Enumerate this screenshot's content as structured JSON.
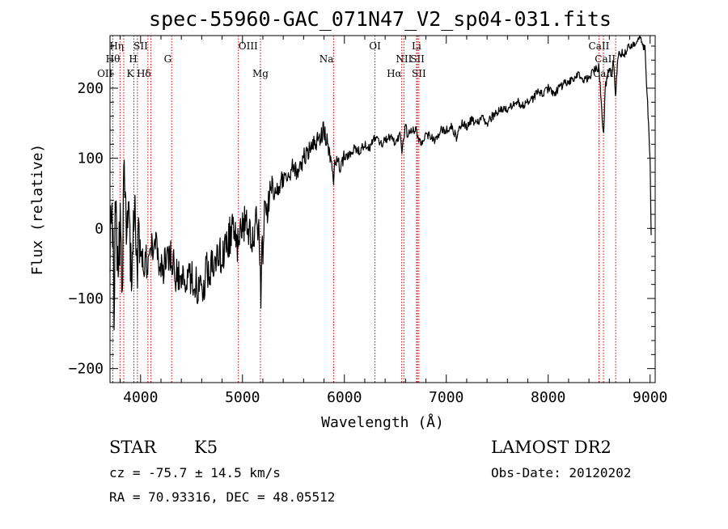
{
  "chart_data": {
    "type": "line",
    "title": "spec-55960-GAC_071N47_V2_sp04-031.fits",
    "xlabel": "Wavelength (Å)",
    "ylabel": "Flux (relative)",
    "xlim": [
      3700,
      9050
    ],
    "ylim": [
      -220,
      275
    ],
    "x_ticks": [
      4000,
      5000,
      6000,
      7000,
      8000,
      9000
    ],
    "y_ticks": [
      -200,
      -100,
      0,
      100,
      200
    ],
    "grid": false,
    "legend": "none",
    "line_color": "#000000",
    "marker_color": "#cc0000",
    "series": [
      {
        "x": [
          3700,
          3720,
          3740,
          3760,
          3780,
          3800,
          3820,
          3840,
          3860,
          3880,
          3900,
          3920,
          3940,
          3960,
          3980,
          4000,
          4050,
          4100,
          4150,
          4200,
          4250,
          4300,
          4350,
          4400,
          4450,
          4500,
          4550,
          4600,
          4650,
          4700,
          4750,
          4800,
          4850,
          4900,
          4950,
          5000,
          5050,
          5100,
          5150,
          5170,
          5180,
          5190,
          5200,
          5210,
          5230,
          5260,
          5300,
          5350,
          5400,
          5450,
          5500,
          5550,
          5600,
          5650,
          5700,
          5750,
          5800,
          5850,
          5880,
          5895,
          5910,
          5930,
          5960,
          6000,
          6050,
          6100,
          6150,
          6200,
          6250,
          6300,
          6350,
          6400,
          6450,
          6500,
          6550,
          6563,
          6580,
          6600,
          6620,
          6650,
          6700,
          6750,
          6800,
          6850,
          6900,
          6950,
          7000,
          7050,
          7100,
          7150,
          7200,
          7250,
          7300,
          7350,
          7400,
          7450,
          7500,
          7550,
          7600,
          7650,
          7700,
          7750,
          7800,
          7850,
          7900,
          7950,
          8000,
          8050,
          8100,
          8150,
          8200,
          8250,
          8300,
          8350,
          8400,
          8450,
          8498,
          8520,
          8542,
          8560,
          8580,
          8600,
          8620,
          8640,
          8662,
          8680,
          8700,
          8750,
          8800,
          8850,
          8900,
          8950,
          9000,
          9010
        ],
        "y": [
          -20,
          40,
          -90,
          60,
          -80,
          30,
          -100,
          140,
          -60,
          0,
          -50,
          -20,
          10,
          -60,
          -20,
          -40,
          -50,
          -30,
          -10,
          -60,
          -50,
          -40,
          -70,
          -60,
          -70,
          -70,
          -80,
          -90,
          -60,
          -50,
          -30,
          -40,
          -20,
          0,
          -20,
          10,
          0,
          -10,
          10,
          -30,
          -110,
          0,
          -40,
          10,
          20,
          40,
          50,
          60,
          70,
          75,
          90,
          80,
          100,
          110,
          120,
          130,
          140,
          110,
          90,
          70,
          100,
          85,
          90,
          100,
          105,
          115,
          110,
          120,
          115,
          130,
          120,
          125,
          130,
          120,
          135,
          110,
          125,
          150,
          130,
          140,
          140,
          120,
          135,
          130,
          125,
          140,
          140,
          145,
          130,
          150,
          145,
          155,
          150,
          160,
          150,
          160,
          165,
          170,
          170,
          175,
          180,
          175,
          180,
          185,
          195,
          190,
          200,
          190,
          200,
          205,
          210,
          210,
          220,
          210,
          215,
          225,
          230,
          180,
          130,
          200,
          215,
          230,
          215,
          240,
          190,
          240,
          250,
          250,
          260,
          265,
          270,
          255,
          100,
          -5
        ]
      }
    ],
    "spectral_lines": [
      {
        "label": "OII",
        "x": 3727,
        "row": 3,
        "anchor": "end"
      },
      {
        "label": "Hθ",
        "x": 3798,
        "row": 2,
        "anchor": "end"
      },
      {
        "label": "Hη",
        "x": 3835,
        "row": 1,
        "anchor": "end"
      },
      {
        "label": "K",
        "x": 3934,
        "row": 3,
        "anchor": "end"
      },
      {
        "label": "H",
        "x": 3969,
        "row": 2,
        "anchor": "end"
      },
      {
        "label": "SII",
        "x": 4072,
        "row": 1,
        "anchor": "end"
      },
      {
        "label": "Hδ",
        "x": 4102,
        "row": 3,
        "anchor": "end"
      },
      {
        "label": "G",
        "x": 4305,
        "row": 2,
        "anchor": "end"
      },
      {
        "label": "OIII",
        "x": 4960,
        "row": 1,
        "anchor": "start"
      },
      {
        "label": "Mg",
        "x": 5176,
        "row": 3,
        "anchor": "middle"
      },
      {
        "label": "Na",
        "x": 5894,
        "row": 2,
        "anchor": "end"
      },
      {
        "label": "OI",
        "x": 6300,
        "row": 1,
        "anchor": "middle"
      },
      {
        "label": "NII",
        "x": 6584,
        "row": 2,
        "anchor": "middle"
      },
      {
        "label": "Hα",
        "x": 6563,
        "row": 3,
        "anchor": "end"
      },
      {
        "label": "Li",
        "x": 6708,
        "row": 1,
        "anchor": "middle"
      },
      {
        "label": "SII",
        "x": 6717,
        "row": 2,
        "anchor": "middle"
      },
      {
        "label": "SII",
        "x": 6731,
        "row": 3,
        "anchor": "middle"
      },
      {
        "label": "CaII",
        "x": 8498,
        "row": 1,
        "anchor": "middle"
      },
      {
        "label": "CaII",
        "x": 8542,
        "row": 3,
        "anchor": "middle"
      },
      {
        "label": "CaII",
        "x": 8662,
        "row": 2,
        "anchor": "end"
      }
    ]
  },
  "footer": {
    "object_class": "STAR",
    "subclass": "K5",
    "survey": "LAMOST DR2",
    "redshift_line": "cz = -75.7 ± 14.5 km/s",
    "obs_date_line": "Obs-Date: 20120202",
    "coords_line": "RA =  70.93316, DEC =  48.05512"
  }
}
